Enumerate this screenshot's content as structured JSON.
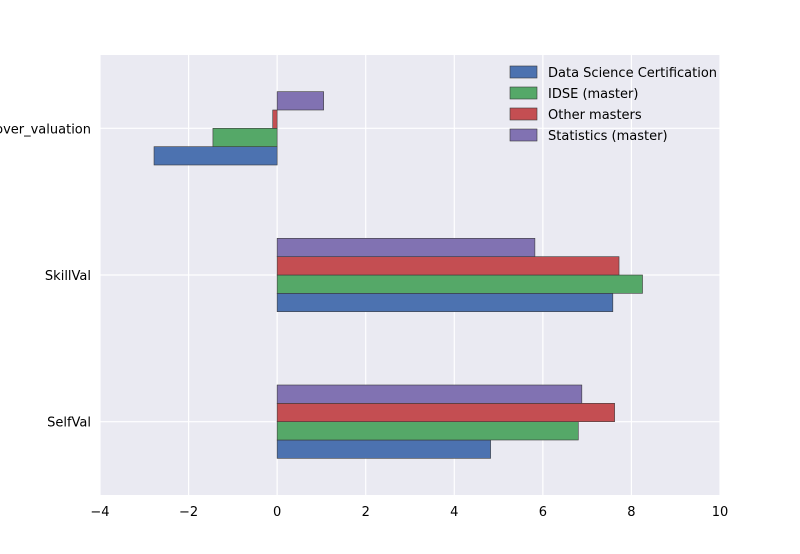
{
  "chart_data": {
    "type": "bar",
    "orientation": "horizontal",
    "categories": [
      "SelfVal",
      "SkillVal",
      "over_valuation"
    ],
    "series": [
      {
        "name": "Data Science Certification",
        "color": "#4c72b0",
        "values": [
          4.82,
          7.58,
          -2.78
        ]
      },
      {
        "name": "IDSE (master)",
        "color": "#55a868",
        "values": [
          6.8,
          8.25,
          -1.45
        ]
      },
      {
        "name": "Other masters",
        "color": "#c44e52",
        "values": [
          7.62,
          7.72,
          -0.1
        ]
      },
      {
        "name": "Statistics (master)",
        "color": "#8172b2",
        "values": [
          6.88,
          5.82,
          1.05
        ]
      }
    ],
    "xlim": [
      -4,
      10
    ],
    "xticks": [
      -4,
      -2,
      0,
      2,
      4,
      6,
      8,
      10
    ],
    "xtick_labels": [
      "−4",
      "−2",
      "0",
      "2",
      "4",
      "6",
      "8",
      "10"
    ],
    "title": "",
    "xlabel": "",
    "ylabel": "",
    "grid": true,
    "legend_position": "top-right",
    "background": "#eaeaf2",
    "grid_color": "#ffffff"
  }
}
